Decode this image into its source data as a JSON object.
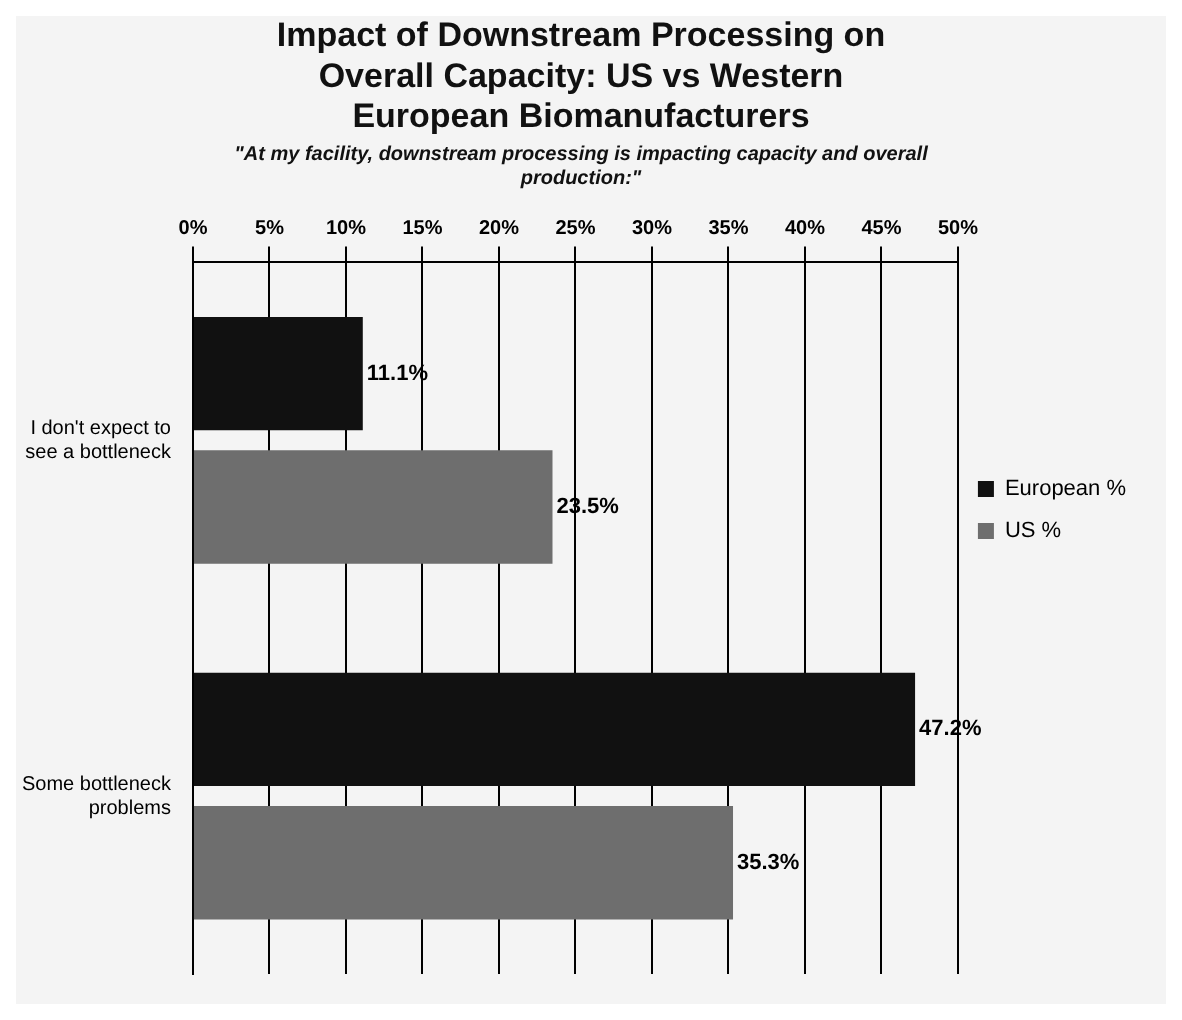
{
  "chart_data": {
    "type": "bar",
    "orientation": "horizontal",
    "title": "Impact of Downstream Processing on Overall Capacity: US vs Western European Biomanufacturers",
    "subtitle": "\"At my facility, downstream processing is impacting capacity and overall production:\"",
    "categories": [
      "I don't expect to see a bottleneck",
      "Some bottleneck problems"
    ],
    "series": [
      {
        "name": "European %",
        "color": "#111111",
        "values": [
          11.1,
          47.2
        ],
        "value_labels": [
          "11.1%",
          "47.2%"
        ]
      },
      {
        "name": "US %",
        "color": "#6e6e6e",
        "values": [
          23.5,
          35.3
        ],
        "value_labels": [
          "23.5%",
          "35.3%"
        ]
      }
    ],
    "xlim": [
      0,
      50
    ],
    "xticks": [
      {
        "value": 0,
        "label": "0%"
      },
      {
        "value": 5,
        "label": "5%"
      },
      {
        "value": 10,
        "label": "10%"
      },
      {
        "value": 15,
        "label": "15%"
      },
      {
        "value": 20,
        "label": "20%"
      },
      {
        "value": 25,
        "label": "25%"
      },
      {
        "value": 30,
        "label": "30%"
      },
      {
        "value": 35,
        "label": "35%"
      },
      {
        "value": 40,
        "label": "40%"
      },
      {
        "value": 45,
        "label": "45%"
      },
      {
        "value": 50,
        "label": "50%"
      }
    ],
    "grid": "x",
    "legend": "right"
  }
}
